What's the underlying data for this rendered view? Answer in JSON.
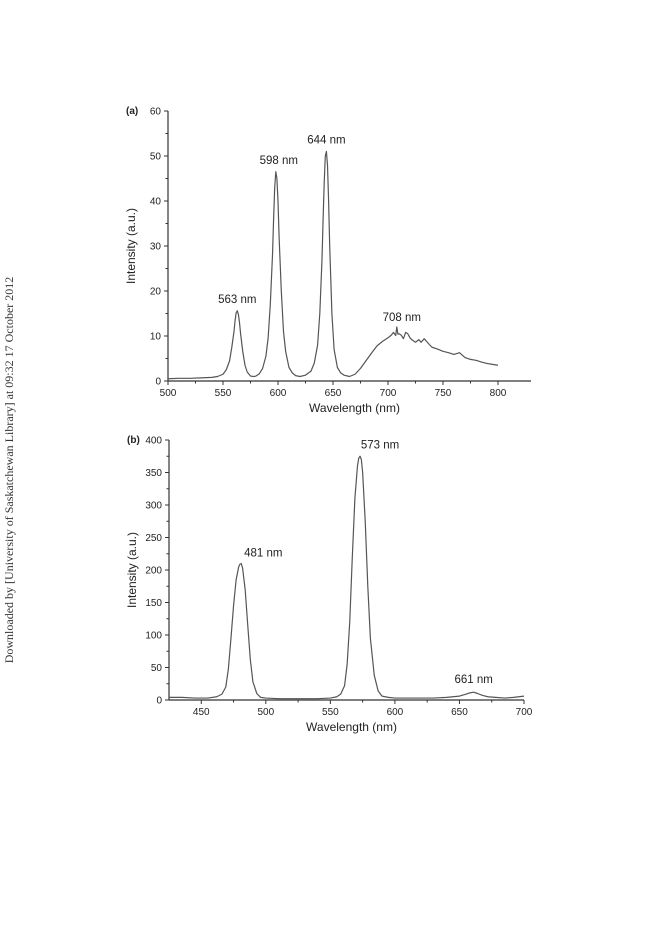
{
  "side_note": "Downloaded by [University of Saskatchewan Library] at 09:32 17 October 2012",
  "chart_data": [
    {
      "panel": "(a)",
      "type": "line",
      "xlabel": "Wavelength (nm)",
      "ylabel": "Intensity (a.u.)",
      "xlim": [
        500,
        830
      ],
      "ylim": [
        0,
        60
      ],
      "xticks": [
        500,
        550,
        600,
        650,
        700,
        750,
        800
      ],
      "yticks": [
        0,
        10,
        20,
        30,
        40,
        50,
        60
      ],
      "grid": false,
      "annotations": [
        {
          "text": "563 nm",
          "x": 563,
          "y": 15.6
        },
        {
          "text": "598 nm",
          "x": 598,
          "y": 46.5
        },
        {
          "text": "644 nm",
          "x": 644,
          "y": 51
        },
        {
          "text": "708 nm",
          "x": 708,
          "y": 12
        }
      ],
      "series": [
        {
          "x": [
            500,
            510,
            520,
            530,
            540,
            545,
            550,
            553,
            556,
            558,
            560,
            561,
            562,
            563,
            564,
            565,
            566,
            568,
            570,
            572,
            575,
            578,
            580,
            583,
            586,
            589,
            591,
            593,
            595,
            596,
            597,
            598,
            599,
            600,
            601,
            603,
            605,
            607,
            610,
            613,
            616,
            620,
            625,
            630,
            633,
            636,
            638,
            640,
            641,
            642,
            643,
            644,
            645,
            646,
            647,
            649,
            651,
            654,
            657,
            660,
            665,
            670,
            675,
            680,
            685,
            690,
            695,
            700,
            703,
            705,
            707,
            708,
            709,
            710,
            712,
            714,
            716,
            718,
            720,
            722,
            725,
            728,
            730,
            733,
            735,
            738,
            740,
            745,
            750,
            755,
            760,
            765,
            770,
            775,
            780,
            785,
            790,
            795,
            800
          ],
          "y": [
            0.5,
            0.6,
            0.6,
            0.7,
            0.8,
            1.0,
            1.5,
            2.5,
            4.5,
            7.5,
            11,
            13.5,
            15.2,
            15.6,
            14.8,
            13,
            10.5,
            6.5,
            3.5,
            2,
            1.1,
            1.0,
            1.1,
            1.6,
            2.8,
            5.5,
            9.5,
            17,
            28,
            36,
            43,
            46.5,
            45,
            40,
            32,
            20,
            11,
            6.5,
            3,
            1.8,
            1.2,
            1.0,
            1.3,
            2.2,
            4,
            8,
            15,
            27,
            36,
            44,
            50,
            51,
            48,
            40,
            30,
            15,
            7,
            3,
            1.8,
            1.3,
            1.0,
            1.5,
            2.8,
            4.5,
            6.2,
            7.8,
            8.8,
            9.6,
            10.2,
            10.8,
            10.1,
            12,
            10.4,
            10.5,
            10.2,
            9.4,
            10.8,
            10.5,
            9.6,
            9.1,
            8.6,
            9.2,
            8.6,
            9.4,
            8.8,
            8.0,
            7.5,
            7.1,
            6.6,
            6.3,
            5.9,
            6.3,
            5.2,
            4.8,
            4.6,
            4.2,
            3.9,
            3.7,
            3.5
          ]
        }
      ]
    },
    {
      "panel": "(b)",
      "type": "line",
      "xlabel": "Wavelength (nm)",
      "ylabel": "Intensity (a.u.)",
      "xlim": [
        425,
        700
      ],
      "ylim": [
        0,
        400
      ],
      "xticks": [
        450,
        500,
        550,
        600,
        650,
        700
      ],
      "yticks": [
        0,
        50,
        100,
        150,
        200,
        250,
        300,
        350,
        400
      ],
      "grid": false,
      "annotations": [
        {
          "text": "481 nm",
          "x": 481,
          "y": 210
        },
        {
          "text": "573 nm",
          "x": 573,
          "y": 375
        },
        {
          "text": "661 nm",
          "x": 661,
          "y": 12
        }
      ],
      "series": [
        {
          "x": [
            425,
            435,
            445,
            455,
            462,
            466,
            469,
            471,
            473,
            475,
            477,
            479,
            480,
            481,
            482,
            484,
            486,
            488,
            490,
            493,
            496,
            500,
            510,
            520,
            530,
            540,
            550,
            555,
            558,
            561,
            563,
            565,
            567,
            569,
            571,
            572,
            573,
            574,
            575,
            577,
            579,
            581,
            584,
            587,
            590,
            595,
            600,
            610,
            620,
            630,
            640,
            645,
            650,
            655,
            658,
            661,
            664,
            668,
            672,
            678,
            685,
            692,
            700
          ],
          "y": [
            4,
            4,
            3,
            3,
            5,
            9,
            20,
            48,
            95,
            145,
            185,
            205,
            209,
            210,
            203,
            170,
            115,
            62,
            28,
            10,
            4,
            3,
            2,
            2,
            2,
            2,
            3,
            5,
            9,
            22,
            55,
            120,
            220,
            310,
            360,
            372,
            375,
            370,
            350,
            275,
            175,
            95,
            38,
            14,
            6,
            4,
            3,
            3,
            3,
            3,
            4,
            5,
            6,
            9,
            11,
            12,
            10,
            7,
            5,
            4,
            3,
            4,
            6
          ]
        }
      ]
    }
  ]
}
